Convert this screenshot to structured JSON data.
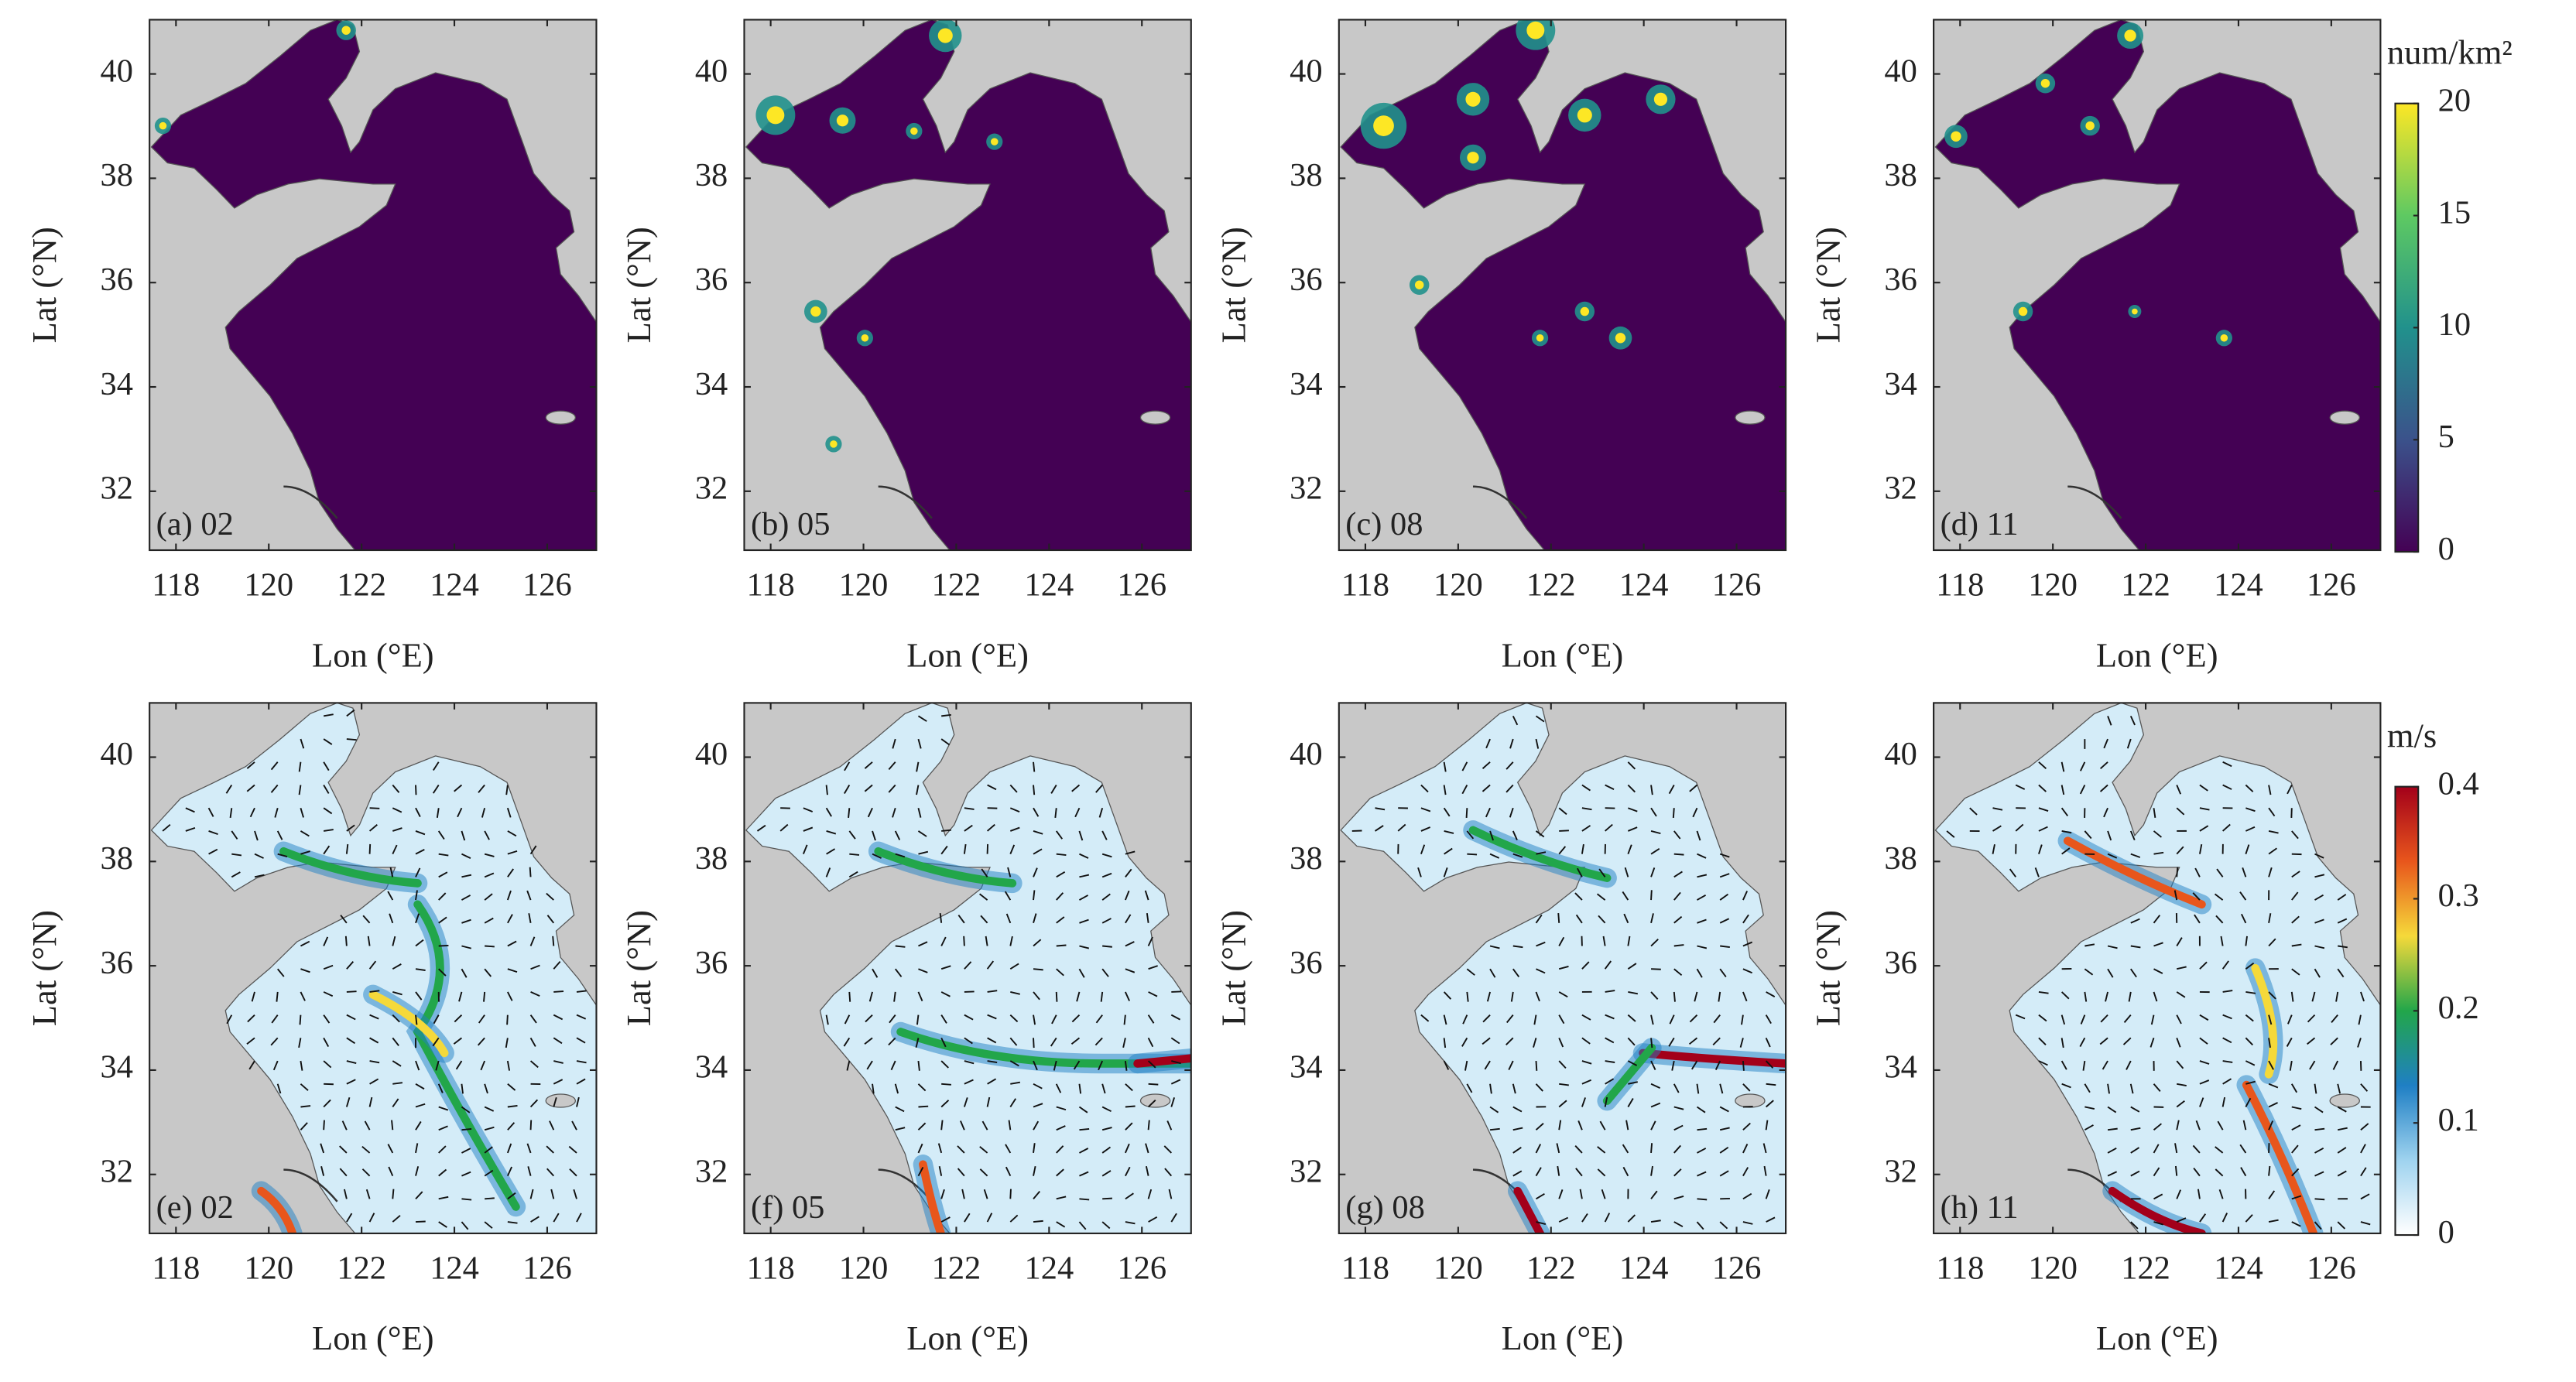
{
  "chart_data": [
    {
      "type": "map",
      "panel_label": "(a) 02",
      "xlabel": "Lon (°E)",
      "ylabel": "Lat (°N)",
      "xlim": [
        117.43,
        127.06
      ],
      "ylim": [
        30.87,
        41.04
      ],
      "xticks": [
        118,
        120,
        122,
        124,
        126
      ],
      "yticks": [
        32,
        34,
        36,
        38,
        40
      ],
      "land_color": "#c8c8c8",
      "sea_color": "#440154"
    },
    {
      "type": "map",
      "panel_label": "(b) 05",
      "xlabel": "Lon (°E)",
      "ylabel": "Lat (°N)",
      "xlim": [
        117.43,
        127.06
      ],
      "ylim": [
        30.87,
        41.04
      ],
      "xticks": [
        118,
        120,
        122,
        124,
        126
      ],
      "yticks": [
        32,
        34,
        36,
        38,
        40
      ],
      "land_color": "#c8c8c8",
      "sea_color": "#440154"
    },
    {
      "type": "map",
      "panel_label": "(c) 08",
      "xlabel": "Lon (°E)",
      "ylabel": "Lat (°N)",
      "xlim": [
        117.43,
        127.06
      ],
      "ylim": [
        30.87,
        41.04
      ],
      "xticks": [
        118,
        120,
        122,
        124,
        126
      ],
      "yticks": [
        32,
        34,
        36,
        38,
        40
      ],
      "land_color": "#c8c8c8",
      "sea_color": "#440154"
    },
    {
      "type": "map",
      "panel_label": "(d) 11",
      "xlabel": "Lon (°E)",
      "ylabel": "Lat (°N)",
      "xlim": [
        117.43,
        127.06
      ],
      "ylim": [
        30.87,
        41.04
      ],
      "xticks": [
        118,
        120,
        122,
        124,
        126
      ],
      "yticks": [
        32,
        34,
        36,
        38,
        40
      ],
      "land_color": "#c8c8c8",
      "sea_color": "#440154",
      "colorbar": {
        "title": "num/km²",
        "lim": [
          0,
          20
        ],
        "ticks": [
          0,
          5,
          10,
          15,
          20
        ],
        "colors": [
          "#440154",
          "#3b528b",
          "#21918c",
          "#5ec962",
          "#fde725"
        ]
      }
    },
    {
      "type": "map",
      "panel_label": "(e) 02",
      "xlabel": "Lon (°E)",
      "ylabel": "Lat (°N)",
      "xlim": [
        117.43,
        127.06
      ],
      "ylim": [
        30.87,
        41.04
      ],
      "xticks": [
        118,
        120,
        122,
        124,
        126
      ],
      "yticks": [
        32,
        34,
        36,
        38,
        40
      ],
      "land_color": "#c8c8c8",
      "sea_color": "#d4ecf8"
    },
    {
      "type": "map",
      "panel_label": "(f) 05",
      "xlabel": "Lon (°E)",
      "ylabel": "Lat (°N)",
      "xlim": [
        117.43,
        127.06
      ],
      "ylim": [
        30.87,
        41.04
      ],
      "xticks": [
        118,
        120,
        122,
        124,
        126
      ],
      "yticks": [
        32,
        34,
        36,
        38,
        40
      ],
      "land_color": "#c8c8c8",
      "sea_color": "#d4ecf8"
    },
    {
      "type": "map",
      "panel_label": "(g) 08",
      "xlabel": "Lon (°E)",
      "ylabel": "Lat (°N)",
      "xlim": [
        117.43,
        127.06
      ],
      "ylim": [
        30.87,
        41.04
      ],
      "xticks": [
        118,
        120,
        122,
        124,
        126
      ],
      "yticks": [
        32,
        34,
        36,
        38,
        40
      ],
      "land_color": "#c8c8c8",
      "sea_color": "#d4ecf8"
    },
    {
      "type": "map",
      "panel_label": "(h) 11",
      "xlabel": "Lon (°E)",
      "ylabel": "Lat (°N)",
      "xlim": [
        117.43,
        127.06
      ],
      "ylim": [
        30.87,
        41.04
      ],
      "xticks": [
        118,
        120,
        122,
        124,
        126
      ],
      "yticks": [
        32,
        34,
        36,
        38,
        40
      ],
      "land_color": "#c8c8c8",
      "sea_color": "#d4ecf8",
      "colorbar": {
        "title": "m/s",
        "lim": [
          0,
          0.4
        ],
        "ticks": [
          0,
          0.1,
          0.2,
          0.3,
          0.4
        ],
        "colors": [
          "#ffffff",
          "#9fd3ef",
          "#1f7fc4",
          "#22a64a",
          "#f5d93a",
          "#e8561c",
          "#a3001a"
        ]
      }
    }
  ]
}
